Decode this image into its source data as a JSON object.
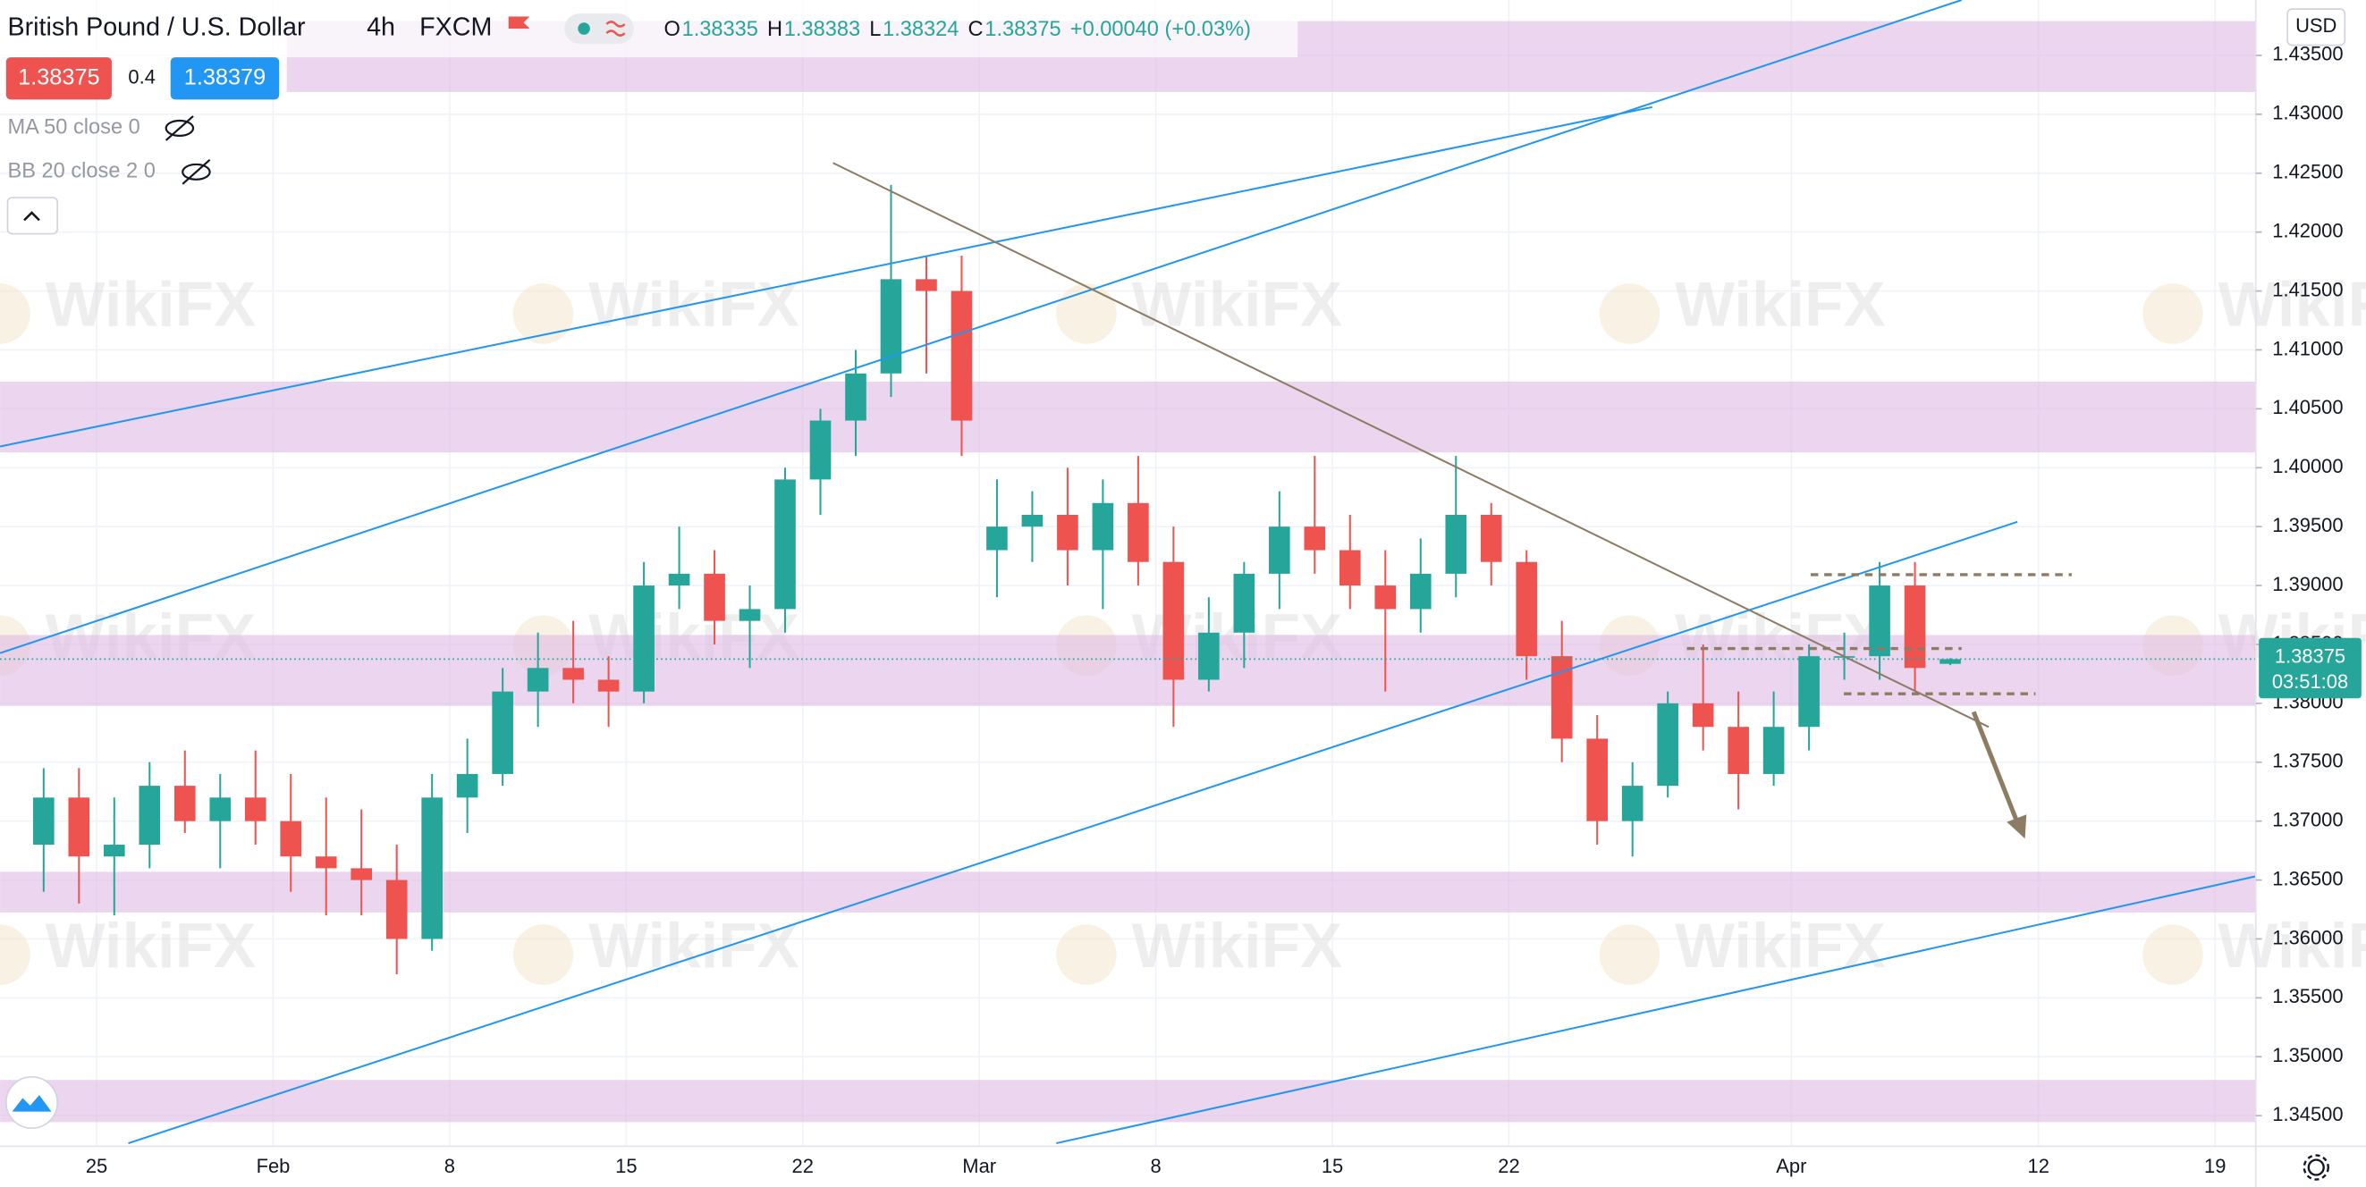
{
  "header": {
    "symbol": "British Pound / U.S. Dollar",
    "interval": "4h",
    "exchange": "FXCM",
    "ohlc": [
      {
        "label": "O",
        "value": "1.38335"
      },
      {
        "label": "H",
        "value": "1.38383"
      },
      {
        "label": "L",
        "value": "1.38324"
      },
      {
        "label": "C",
        "value": "1.38375"
      }
    ],
    "change": "+0.00040 (+0.03%)",
    "bid": "1.38375",
    "spread": "0.4",
    "ask": "1.38379"
  },
  "indicators": [
    "MA 50 close 0",
    "BB 20 close 2 0"
  ],
  "watermark": "WikiFX",
  "price_axis": {
    "currency": "USD",
    "last_price": "1.38375",
    "countdown": "03:51:08"
  },
  "chart_data": {
    "type": "candlestick",
    "up_color": "#26a69a",
    "down_color": "#ef5350",
    "categories": [
      null,
      null,
      "25",
      null,
      null,
      null,
      null,
      "Feb",
      null,
      null,
      null,
      null,
      "8",
      null,
      null,
      null,
      null,
      "15",
      null,
      null,
      null,
      null,
      "22",
      null,
      null,
      null,
      null,
      "Mar",
      null,
      null,
      null,
      null,
      "8",
      null,
      null,
      null,
      null,
      "15",
      null,
      null,
      null,
      null,
      "22",
      null,
      null,
      null,
      null,
      null,
      null,
      null,
      "Apr",
      null,
      null,
      null,
      null,
      null,
      null,
      "12",
      null,
      null,
      null,
      null,
      "19",
      null
    ],
    "open": [
      1.368,
      1.372,
      1.367,
      1.368,
      1.373,
      1.37,
      1.372,
      1.37,
      1.367,
      1.366,
      1.365,
      1.36,
      1.372,
      1.374,
      1.381,
      1.383,
      1.382,
      1.381,
      1.39,
      1.391,
      1.387,
      1.388,
      1.399,
      1.404,
      1.408,
      1.416,
      1.415,
      1.393,
      1.395,
      1.396,
      1.393,
      1.397,
      1.392,
      1.382,
      1.386,
      1.391,
      1.395,
      1.393,
      1.39,
      1.388,
      1.391,
      1.396,
      1.392,
      1.384,
      1.377,
      1.37,
      1.373,
      1.38,
      1.378,
      1.374,
      1.378,
      1.384,
      1.384,
      1.39,
      1.38335,
      null,
      null,
      null,
      null,
      null,
      null,
      null,
      null,
      null
    ],
    "high": [
      1.3745,
      1.3745,
      1.372,
      1.375,
      1.376,
      1.374,
      1.376,
      1.374,
      1.372,
      1.371,
      1.368,
      1.374,
      1.377,
      1.383,
      1.386,
      1.387,
      1.384,
      1.392,
      1.395,
      1.393,
      1.39,
      1.4,
      1.405,
      1.41,
      1.424,
      1.418,
      1.418,
      1.399,
      1.398,
      1.4,
      1.399,
      1.401,
      1.395,
      1.389,
      1.392,
      1.398,
      1.401,
      1.396,
      1.393,
      1.394,
      1.401,
      1.397,
      1.393,
      1.387,
      1.379,
      1.375,
      1.381,
      1.385,
      1.381,
      1.381,
      1.385,
      1.386,
      1.392,
      1.392,
      1.38383,
      null,
      null,
      null,
      null,
      null,
      null,
      null,
      null,
      null
    ],
    "low": [
      1.364,
      1.363,
      1.362,
      1.366,
      1.369,
      1.366,
      1.368,
      1.364,
      1.362,
      1.362,
      1.357,
      1.359,
      1.369,
      1.373,
      1.378,
      1.38,
      1.378,
      1.38,
      1.388,
      1.385,
      1.383,
      1.386,
      1.396,
      1.401,
      1.406,
      1.408,
      1.401,
      1.389,
      1.392,
      1.39,
      1.388,
      1.39,
      1.378,
      1.381,
      1.383,
      1.388,
      1.391,
      1.388,
      1.381,
      1.386,
      1.389,
      1.39,
      1.382,
      1.375,
      1.368,
      1.367,
      1.372,
      1.376,
      1.371,
      1.373,
      1.376,
      1.382,
      1.382,
      1.381,
      1.38324,
      null,
      null,
      null,
      null,
      null,
      null,
      null,
      null,
      null
    ],
    "close": [
      1.372,
      1.367,
      1.368,
      1.373,
      1.37,
      1.372,
      1.37,
      1.367,
      1.366,
      1.365,
      1.36,
      1.372,
      1.374,
      1.381,
      1.383,
      1.382,
      1.381,
      1.39,
      1.391,
      1.387,
      1.388,
      1.399,
      1.404,
      1.408,
      1.416,
      1.415,
      1.404,
      1.395,
      1.396,
      1.393,
      1.397,
      1.392,
      1.382,
      1.386,
      1.391,
      1.395,
      1.393,
      1.39,
      1.388,
      1.391,
      1.396,
      1.392,
      1.384,
      1.377,
      1.37,
      1.373,
      1.38,
      1.378,
      1.374,
      1.378,
      1.384,
      1.384,
      1.39,
      1.383,
      1.38375,
      null,
      null,
      null,
      null,
      null,
      null,
      null,
      null,
      null
    ],
    "ylim": [
      1.3424,
      1.4397
    ],
    "yticks": [
      {
        "value": 1.345,
        "label": "1.34500"
      },
      {
        "value": 1.35,
        "label": "1.35000"
      },
      {
        "value": 1.355,
        "label": "1.35500"
      },
      {
        "value": 1.36,
        "label": "1.36000"
      },
      {
        "value": 1.365,
        "label": "1.36500"
      },
      {
        "value": 1.37,
        "label": "1.37000"
      },
      {
        "value": 1.375,
        "label": "1.37500"
      },
      {
        "value": 1.38,
        "label": "1.38000"
      },
      {
        "value": 1.385,
        "label": "1.38500"
      },
      {
        "value": 1.39,
        "label": "1.39000"
      },
      {
        "value": 1.395,
        "label": "1.39500"
      },
      {
        "value": 1.4,
        "label": "1.40000"
      },
      {
        "value": 1.405,
        "label": "1.40500"
      },
      {
        "value": 1.41,
        "label": "1.41000"
      },
      {
        "value": 1.415,
        "label": "1.41500"
      },
      {
        "value": 1.42,
        "label": "1.42000"
      },
      {
        "value": 1.425,
        "label": "1.42500"
      },
      {
        "value": 1.43,
        "label": "1.43000"
      },
      {
        "value": 1.435,
        "label": "1.43500"
      }
    ],
    "grid": true
  }
}
